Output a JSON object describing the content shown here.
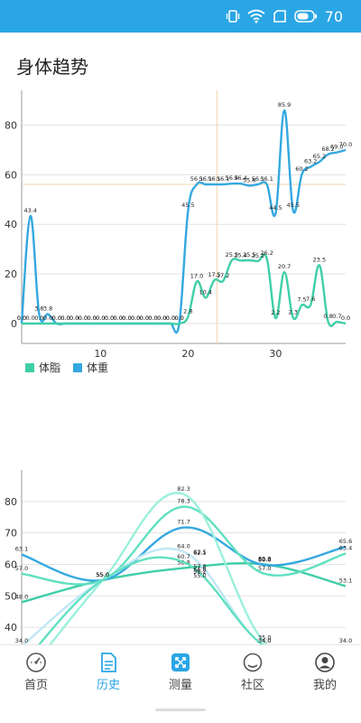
{
  "status": {
    "battery": "70"
  },
  "title": "身体趋势",
  "legend": [
    {
      "label": "体脂",
      "color": "#3fcfa8"
    },
    {
      "label": "体重",
      "color": "#34a8e0"
    }
  ],
  "chart_data": [
    {
      "type": "line",
      "title": "",
      "xlabel": "",
      "ylabel": "",
      "xlim": [
        1,
        38
      ],
      "ylim": [
        -8,
        94
      ],
      "x_ticks": [
        10,
        20,
        30
      ],
      "y_ticks": [
        0,
        20,
        40,
        60,
        80
      ],
      "grid": true,
      "legend": "bottom-left",
      "series": [
        {
          "name": "体重",
          "color": "#34a8e0",
          "x": [
            1,
            2,
            3,
            4,
            5,
            6,
            7,
            8,
            9,
            10,
            11,
            12,
            13,
            14,
            15,
            16,
            17,
            18,
            19,
            20,
            21,
            22,
            23,
            24,
            25,
            26,
            27,
            28,
            29,
            30,
            31,
            32,
            33,
            34,
            35,
            36,
            37,
            38
          ],
          "values": [
            0.0,
            43.4,
            3.8,
            3.8,
            0.0,
            0.0,
            0.0,
            0.0,
            0.0,
            0.0,
            0.0,
            0.0,
            0.0,
            0.0,
            0.0,
            0.0,
            0.0,
            0.0,
            0.0,
            45.5,
            56.1,
            56.1,
            56.1,
            56.1,
            56.4,
            56.4,
            55.6,
            56.1,
            56.1,
            44.5,
            85.9,
            45.5,
            60.2,
            63.2,
            65.2,
            68.2,
            69.0,
            70.0
          ],
          "labels": [
            "0.0",
            "43.4",
            "3.8",
            "3.8",
            "0.0",
            "0.0",
            "0.0",
            "0.0",
            "0.0",
            "0.0",
            "0.0",
            "0.0",
            "0.0",
            "0.0",
            "0.0",
            "0.0",
            "0.0",
            "0.0",
            "0.0",
            "45.5",
            "56.1",
            "56.1",
            "56.1",
            "56.1",
            "56.4",
            "56.4",
            "55.6",
            "56.1",
            "56.1",
            "44.5",
            "85.9",
            "45.5",
            "60.2",
            "63.2",
            "65.2",
            "68.2",
            "69.0",
            "70.0"
          ]
        },
        {
          "name": "体脂",
          "color": "#3fcfa8",
          "x": [
            1,
            2,
            3,
            4,
            5,
            6,
            7,
            8,
            9,
            10,
            11,
            12,
            13,
            14,
            15,
            16,
            17,
            18,
            19,
            20,
            21,
            22,
            23,
            24,
            25,
            26,
            27,
            28,
            29,
            30,
            31,
            32,
            33,
            34,
            35,
            36,
            37,
            38
          ],
          "values": [
            0.0,
            0.0,
            0.0,
            0.0,
            0.0,
            0.0,
            0.0,
            0.0,
            0.0,
            0.0,
            0.0,
            0.0,
            0.0,
            0.0,
            0.0,
            0.0,
            0.0,
            0.0,
            0.0,
            2.8,
            17.0,
            10.4,
            17.5,
            17.2,
            25.5,
            25.4,
            25.5,
            25.2,
            26.2,
            2.2,
            20.7,
            2.3,
            7.5,
            7.6,
            23.5,
            0.8,
            0.7,
            0.0
          ],
          "labels": [
            "0.0",
            "0.0",
            "0.0",
            "0.0",
            "0.0",
            "0.0",
            "0.0",
            "0.0",
            "0.0",
            "0.0",
            "0.0",
            "0.0",
            "0.0",
            "0.0",
            "0.0",
            "0.0",
            "0.0",
            "0.0",
            "0.0",
            "2.8",
            "17.0",
            "10.4",
            "17.5",
            "17.2",
            "25.5",
            "25.4",
            "25.5",
            "25.2",
            "26.2",
            "2.2",
            "20.7",
            "2.3",
            "7.5",
            "7.6",
            "23.5",
            "0.8",
            "0.7",
            "0.0"
          ]
        }
      ]
    },
    {
      "type": "line",
      "title": "",
      "xlim": [
        0,
        4
      ],
      "ylim": [
        34,
        90
      ],
      "y_ticks": [
        40,
        50,
        60,
        70,
        80
      ],
      "grid": true,
      "series": [
        {
          "color": "#3fcfa8",
          "x": [
            0,
            1,
            2,
            3,
            4
          ],
          "values": [
            48.0,
            55.0,
            58.8,
            60.0,
            53.1
          ],
          "labels": [
            "48.0",
            "55.0",
            "58.8",
            "60.0",
            "53.1"
          ]
        },
        {
          "color": "#34a8e0",
          "x": [
            0,
            1,
            2,
            3,
            4
          ],
          "values": [
            63.1,
            55.0,
            71.7,
            59.8,
            65.6
          ],
          "labels": [
            "63.1",
            "55.0",
            "71.7",
            "59.8",
            "65.6"
          ]
        },
        {
          "color": "#5fe0c0",
          "x": [
            0,
            1,
            2,
            3,
            4
          ],
          "values": [
            57.0,
            55.0,
            78.3,
            57.0,
            63.4
          ],
          "labels": [
            "57.0",
            "55.0",
            "78.3",
            "57.0",
            "63.4"
          ]
        },
        {
          "color": "#9bf0dc",
          "x": [
            0,
            1,
            2,
            3,
            4
          ],
          "values": [
            23.0,
            55.0,
            82.3,
            35.0,
            24.0
          ],
          "labels": [
            "",
            "55.0",
            "82.3",
            "35.0",
            ""
          ]
        },
        {
          "color": "#bfe8f5",
          "x": [
            0,
            1,
            2,
            3,
            4
          ],
          "values": [
            34.0,
            55.0,
            64.0,
            34.0,
            34.0
          ],
          "labels": [
            "34.0",
            "55.0",
            "64.0",
            "34.0",
            "34.0"
          ]
        },
        {
          "color": "#5fe0c0",
          "x": [
            0,
            1,
            2,
            3,
            4
          ],
          "values": [
            28.0,
            55.0,
            60.7,
            34.0,
            27.0
          ],
          "labels": [
            "",
            "55.0",
            "60.7",
            "34.0",
            ""
          ]
        }
      ],
      "extra_labels": [
        "62.5",
        "62.1",
        "57.8",
        "56.8",
        "56.2",
        "55.0",
        "60.0"
      ]
    }
  ],
  "nav": [
    {
      "label": "首页",
      "icon": "speedometer-icon",
      "active": false
    },
    {
      "label": "历史",
      "icon": "document-icon",
      "active": true
    },
    {
      "label": "测量",
      "icon": "scan-icon",
      "active": false
    },
    {
      "label": "社区",
      "icon": "chat-icon",
      "active": false
    },
    {
      "label": "我的",
      "icon": "user-icon",
      "active": false
    }
  ]
}
